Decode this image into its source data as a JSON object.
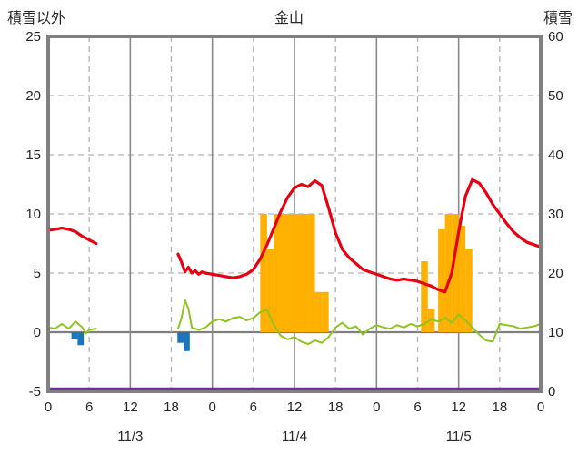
{
  "header": {
    "left_axis_title": "積雪以外",
    "chart_title": "金山",
    "right_axis_title": "積雪"
  },
  "colors": {
    "background": "#ffffff",
    "text": "#262626",
    "frame": "#808080",
    "grid_dashed": "#b3b3b3",
    "grid_solid": "#8a8a8a",
    "zero_line": "#7f7f7f"
  },
  "chart_data": {
    "type": "line",
    "title": "金山",
    "left_axis": {
      "title": "積雪以外",
      "min": -5,
      "max": 25,
      "ticks": [
        25,
        20,
        15,
        10,
        5,
        0,
        -5
      ]
    },
    "right_axis": {
      "title": "積雪",
      "min": 0,
      "max": 60,
      "ticks": [
        60,
        50,
        40,
        30,
        20,
        10,
        0
      ]
    },
    "x_axis": {
      "min": 0,
      "max": 72,
      "ticks": [
        0,
        6,
        12,
        18,
        24,
        30,
        36,
        42,
        48,
        54,
        60,
        66,
        72
      ],
      "tick_labels": [
        "0",
        "6",
        "12",
        "18",
        "0",
        "6",
        "12",
        "18",
        "0",
        "6",
        "12",
        "18",
        "0"
      ],
      "solid_lines": [
        12,
        24,
        36,
        48,
        60
      ],
      "dashed_lines": [
        6,
        18,
        30,
        42,
        54,
        66
      ],
      "date_labels": [
        {
          "label": "11/3",
          "center_hour": 12
        },
        {
          "label": "11/4",
          "center_hour": 36
        },
        {
          "label": "11/5",
          "center_hour": 60
        }
      ]
    },
    "grid": {
      "h_dashed_values": [
        20,
        15,
        10,
        5
      ],
      "h_solid_values": [
        0
      ]
    },
    "series": [
      {
        "name": "orange-bars",
        "type": "bar",
        "axis": "left",
        "color": "#ffb000",
        "bar_width": 1,
        "points": [
          [
            31,
            10
          ],
          [
            32,
            7
          ],
          [
            33,
            10
          ],
          [
            34,
            10
          ],
          [
            35,
            10
          ],
          [
            36,
            10
          ],
          [
            37,
            10
          ],
          [
            38,
            10
          ],
          [
            39,
            3.4
          ],
          [
            40,
            3.4
          ],
          [
            54.5,
            6
          ],
          [
            55.5,
            2
          ],
          [
            57,
            8.7
          ],
          [
            58,
            10
          ],
          [
            59,
            10
          ],
          [
            60,
            9
          ],
          [
            61,
            7
          ]
        ]
      },
      {
        "name": "blue-bars",
        "type": "bar",
        "axis": "left",
        "color": "#1b75bb",
        "bar_width": 0.9,
        "points": [
          [
            3.4,
            -0.6
          ],
          [
            4.3,
            -1.1
          ],
          [
            18.9,
            -0.9
          ],
          [
            19.8,
            -1.6
          ]
        ]
      },
      {
        "name": "green-line",
        "type": "line",
        "axis": "left",
        "color": "#8fc31f",
        "width": 2,
        "segments": [
          [
            [
              0,
              0.4
            ],
            [
              1,
              0.3
            ],
            [
              2,
              0.7
            ],
            [
              3,
              0.3
            ],
            [
              4,
              0.9
            ],
            [
              5,
              0.4
            ],
            [
              5.5,
              -0.1
            ],
            [
              6,
              0.2
            ],
            [
              7,
              0.3
            ]
          ],
          [
            [
              19,
              0.3
            ],
            [
              19.5,
              1.2
            ],
            [
              20,
              2.7
            ],
            [
              20.5,
              2.0
            ],
            [
              21,
              0.4
            ],
            [
              22,
              0.2
            ],
            [
              23,
              0.4
            ],
            [
              24,
              0.9
            ],
            [
              25,
              1.1
            ],
            [
              26,
              0.9
            ],
            [
              27,
              1.2
            ],
            [
              28,
              1.3
            ],
            [
              29,
              1.0
            ],
            [
              30,
              1.2
            ],
            [
              31,
              1.7
            ],
            [
              32,
              1.9
            ],
            [
              33,
              0.6
            ],
            [
              34,
              -0.3
            ],
            [
              35,
              -0.6
            ],
            [
              36,
              -0.4
            ],
            [
              37,
              -0.8
            ],
            [
              38,
              -1.0
            ],
            [
              39,
              -0.7
            ],
            [
              40,
              -0.9
            ],
            [
              41,
              -0.4
            ],
            [
              42,
              0.4
            ],
            [
              43,
              0.8
            ],
            [
              44,
              0.3
            ],
            [
              45,
              0.5
            ],
            [
              46,
              -0.2
            ],
            [
              47,
              0.3
            ],
            [
              48,
              0.6
            ],
            [
              49,
              0.4
            ],
            [
              50,
              0.3
            ],
            [
              51,
              0.6
            ],
            [
              52,
              0.4
            ],
            [
              53,
              0.7
            ],
            [
              54,
              0.5
            ],
            [
              55,
              0.7
            ],
            [
              56,
              1.1
            ],
            [
              57,
              0.9
            ],
            [
              58,
              1.2
            ],
            [
              59,
              0.8
            ],
            [
              60,
              1.5
            ],
            [
              61,
              1.0
            ],
            [
              62,
              0.4
            ],
            [
              63,
              -0.2
            ],
            [
              64,
              -0.7
            ],
            [
              65,
              -0.8
            ],
            [
              66,
              0.7
            ],
            [
              67,
              0.6
            ],
            [
              68,
              0.5
            ],
            [
              69,
              0.3
            ],
            [
              70,
              0.4
            ],
            [
              71,
              0.5
            ],
            [
              72,
              0.7
            ]
          ]
        ]
      },
      {
        "name": "red-line",
        "type": "line",
        "axis": "left",
        "color": "#e60012",
        "width": 3.2,
        "segments": [
          [
            [
              0,
              8.6
            ],
            [
              1,
              8.7
            ],
            [
              2,
              8.8
            ],
            [
              3,
              8.7
            ],
            [
              4,
              8.5
            ],
            [
              5,
              8.1
            ],
            [
              6,
              7.8
            ],
            [
              7,
              7.5
            ]
          ],
          [
            [
              19,
              6.6
            ],
            [
              19.5,
              5.9
            ],
            [
              20,
              5.1
            ],
            [
              20.5,
              5.5
            ],
            [
              21,
              5.0
            ],
            [
              21.5,
              5.2
            ],
            [
              22,
              4.9
            ],
            [
              22.5,
              5.1
            ],
            [
              23,
              5.0
            ],
            [
              24,
              4.9
            ],
            [
              25,
              4.8
            ],
            [
              26,
              4.7
            ],
            [
              27,
              4.6
            ],
            [
              28,
              4.7
            ],
            [
              29,
              4.9
            ],
            [
              30,
              5.3
            ],
            [
              31,
              6.2
            ],
            [
              32,
              7.4
            ],
            [
              33,
              8.8
            ],
            [
              34,
              10.2
            ],
            [
              35,
              11.4
            ],
            [
              36,
              12.2
            ],
            [
              37,
              12.5
            ],
            [
              38,
              12.3
            ],
            [
              39,
              12.8
            ],
            [
              40,
              12.4
            ],
            [
              41,
              10.5
            ],
            [
              42,
              8.4
            ],
            [
              43,
              7.0
            ],
            [
              44,
              6.3
            ],
            [
              45,
              5.8
            ],
            [
              46,
              5.3
            ],
            [
              47,
              5.1
            ],
            [
              48,
              4.9
            ],
            [
              49,
              4.7
            ],
            [
              50,
              4.5
            ],
            [
              51,
              4.4
            ],
            [
              52,
              4.5
            ],
            [
              53,
              4.4
            ],
            [
              54,
              4.3
            ],
            [
              55,
              4.1
            ],
            [
              56,
              3.9
            ],
            [
              57,
              3.6
            ],
            [
              58,
              3.4
            ],
            [
              59,
              5.0
            ],
            [
              60,
              8.5
            ],
            [
              61,
              11.5
            ],
            [
              62,
              12.9
            ],
            [
              63,
              12.6
            ],
            [
              64,
              11.8
            ],
            [
              65,
              10.8
            ],
            [
              66,
              10.0
            ],
            [
              67,
              9.2
            ],
            [
              68,
              8.5
            ],
            [
              69,
              8.0
            ],
            [
              70,
              7.6
            ],
            [
              71,
              7.4
            ],
            [
              72,
              7.2
            ]
          ]
        ]
      },
      {
        "name": "purple-line",
        "type": "line",
        "axis": "right",
        "color": "#7030a0",
        "width": 2.5,
        "segments": [
          [
            [
              0,
              0
            ],
            [
              72,
              0
            ]
          ]
        ]
      }
    ]
  }
}
